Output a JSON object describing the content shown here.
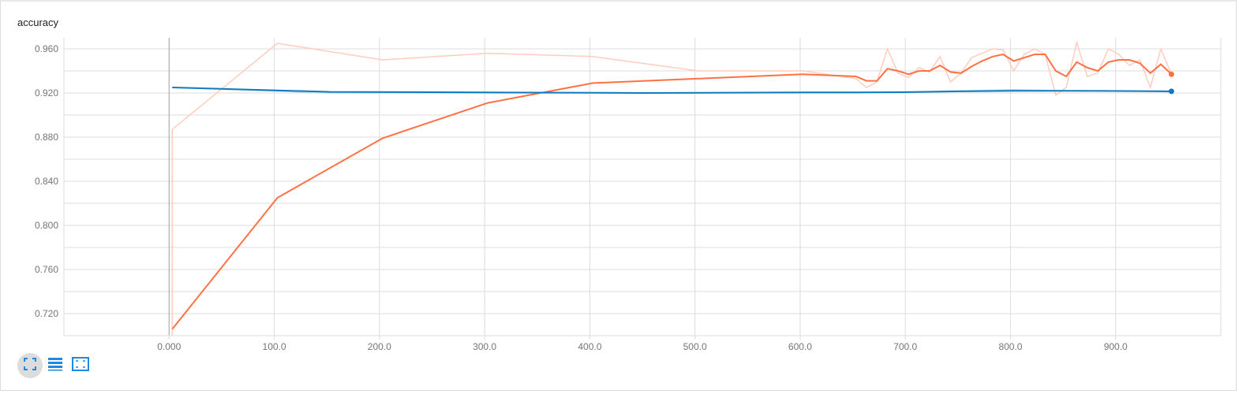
{
  "chart_title": "accuracy",
  "colors": {
    "orange": "#ff7043",
    "orange_raw": "#ffcdbd",
    "blue": "#0f7bbf",
    "blue_raw": "#b9d8ee",
    "grid": "#dcdcdc",
    "axis_line": "#9e9e9e",
    "icon": "#1e88e5"
  },
  "toolbar": {
    "buttons": [
      {
        "name": "expand-icon",
        "active": true
      },
      {
        "name": "list-icon",
        "active": false
      },
      {
        "name": "fit-domain-icon",
        "active": false
      }
    ]
  },
  "chart_data": {
    "type": "line",
    "title": "accuracy",
    "xlabel": "",
    "ylabel": "",
    "xlim": [
      -100,
      1000
    ],
    "ylim": [
      0.7,
      0.97
    ],
    "x_ticks": [
      0,
      100,
      200,
      300,
      400,
      500,
      600,
      700,
      800,
      900
    ],
    "x_tick_labels": [
      "0.000",
      "100.0",
      "200.0",
      "300.0",
      "400.0",
      "500.0",
      "600.0",
      "700.0",
      "800.0",
      "900.0"
    ],
    "y_ticks": [
      0.72,
      0.76,
      0.8,
      0.84,
      0.88,
      0.92,
      0.96
    ],
    "y_tick_labels": [
      "0.720",
      "0.760",
      "0.800",
      "0.840",
      "0.880",
      "0.920",
      "0.960"
    ],
    "grid": true,
    "series": [
      {
        "color_key": "orange",
        "raw_x": [
          3,
          3,
          103,
          203,
          303,
          403,
          503,
          603,
          653,
          663,
          673,
          683,
          693,
          703,
          713,
          723,
          733,
          743,
          753,
          763,
          773,
          783,
          793,
          803,
          813,
          823,
          833,
          843,
          853,
          863,
          873,
          883,
          893,
          903,
          913,
          923,
          933,
          943,
          953
        ],
        "raw_y": [
          0.7,
          0.887,
          0.965,
          0.95,
          0.956,
          0.953,
          0.94,
          0.94,
          0.933,
          0.925,
          0.93,
          0.96,
          0.938,
          0.934,
          0.943,
          0.939,
          0.953,
          0.93,
          0.938,
          0.952,
          0.956,
          0.96,
          0.959,
          0.94,
          0.955,
          0.96,
          0.955,
          0.918,
          0.925,
          0.966,
          0.935,
          0.938,
          0.96,
          0.955,
          0.945,
          0.95,
          0.925,
          0.96,
          0.937
        ],
        "smoothed_x": [
          3,
          103,
          203,
          303,
          403,
          503,
          603,
          653,
          663,
          673,
          683,
          693,
          703,
          713,
          723,
          733,
          743,
          753,
          763,
          773,
          783,
          793,
          803,
          813,
          823,
          833,
          843,
          853,
          863,
          873,
          883,
          893,
          903,
          913,
          923,
          933,
          943,
          953
        ],
        "smoothed_y": [
          0.706,
          0.825,
          0.879,
          0.911,
          0.929,
          0.933,
          0.937,
          0.935,
          0.931,
          0.931,
          0.942,
          0.94,
          0.937,
          0.94,
          0.94,
          0.945,
          0.939,
          0.938,
          0.944,
          0.949,
          0.953,
          0.955,
          0.949,
          0.952,
          0.955,
          0.955,
          0.94,
          0.935,
          0.948,
          0.943,
          0.94,
          0.948,
          0.95,
          0.95,
          0.947,
          0.938,
          0.946,
          0.937
        ]
      },
      {
        "color_key": "blue",
        "raw_x": [
          3,
          153,
          303,
          453,
          603,
          653,
          703,
          753,
          803,
          853,
          903,
          953
        ],
        "raw_y": [
          0.925,
          0.92,
          0.92,
          0.92,
          0.92,
          0.92,
          0.921,
          0.922,
          0.923,
          0.922,
          0.922,
          0.921
        ],
        "smoothed_x": [
          3,
          153,
          303,
          453,
          603,
          653,
          703,
          753,
          803,
          853,
          903,
          953
        ],
        "smoothed_y": [
          0.925,
          0.921,
          0.9205,
          0.92,
          0.9205,
          0.9205,
          0.9208,
          0.9215,
          0.922,
          0.922,
          0.9218,
          0.9215
        ]
      }
    ]
  }
}
